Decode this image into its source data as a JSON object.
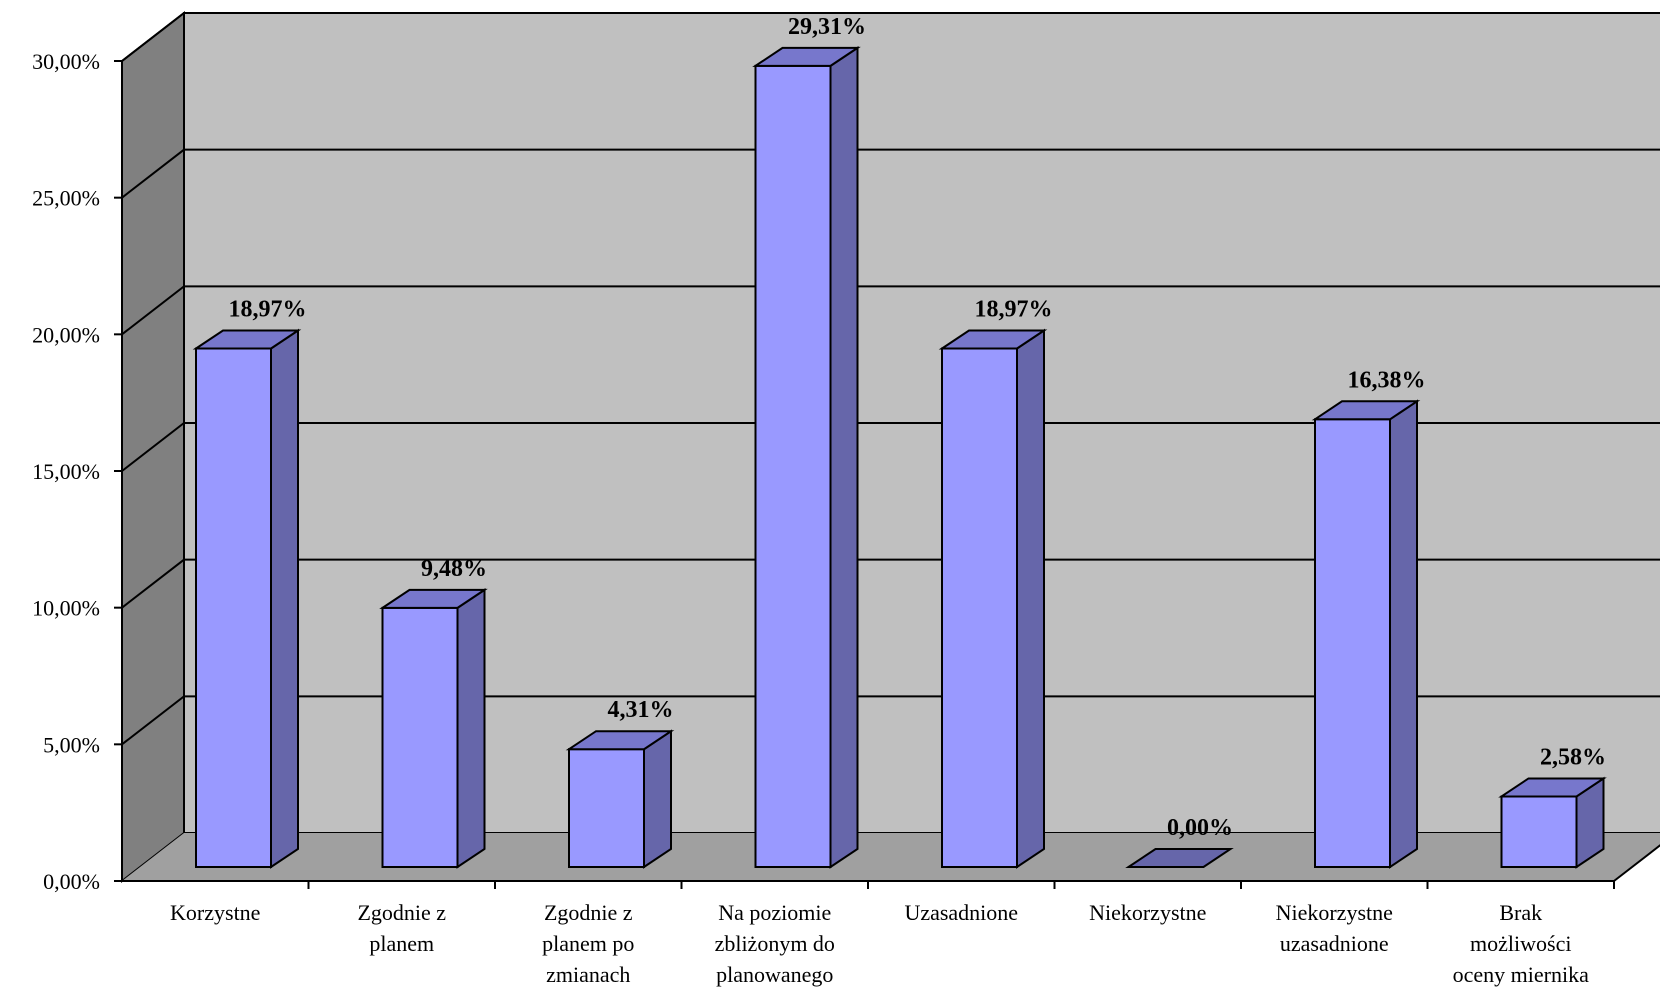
{
  "chart_data": {
    "type": "bar",
    "style": "3d-column",
    "categories": [
      [
        "Korzystne"
      ],
      [
        "Zgodnie z",
        "planem"
      ],
      [
        "Zgodnie z",
        "planem po",
        "zmianach"
      ],
      [
        "Na poziomie",
        "zbliżonym do",
        "planowanego"
      ],
      [
        "Uzasadnione"
      ],
      [
        "Niekorzystne"
      ],
      [
        "Niekorzystne",
        "uzasadnione"
      ],
      [
        "Brak",
        "możliwości",
        "oceny miernika"
      ]
    ],
    "values": [
      18.97,
      9.48,
      4.31,
      29.31,
      18.97,
      0.0,
      16.38,
      2.58
    ],
    "data_labels": [
      "18,97%",
      "9,48%",
      "4,31%",
      "29,31%",
      "18,97%",
      "0,00%",
      "16,38%",
      "2,58%"
    ],
    "ylim": [
      0,
      30
    ],
    "yticks": [
      "0,00%",
      "5,00%",
      "10,00%",
      "15,00%",
      "20,00%",
      "25,00%",
      "30,00%"
    ],
    "grid": true,
    "colors": {
      "bar_front": "#9999ff",
      "bar_side": "#6666aa",
      "bar_top": "#7777cc",
      "back_wall": "#c0c0c0",
      "side_wall": "#808080",
      "floor": "#a0a0a0"
    }
  }
}
